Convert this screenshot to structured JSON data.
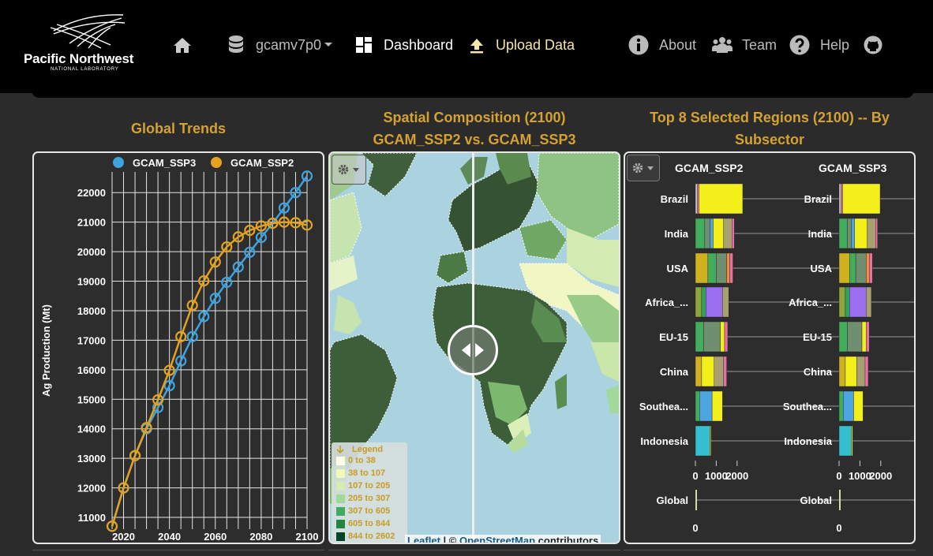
{
  "header": {
    "logo_main": "Pacific Northwest",
    "logo_sub": "NATIONAL LABORATORY",
    "nav": {
      "home_icon": "home-icon",
      "database_label": "gcamv7p0",
      "dashboard_label": "Dashboard",
      "upload_label": "Upload Data",
      "about_label": "About",
      "team_label": "Team",
      "help_label": "Help",
      "github_icon": "github-icon"
    }
  },
  "global_trends": {
    "title": "Global Trends",
    "chart_data": {
      "type": "line",
      "title": "Global Trends",
      "xlabel": "",
      "ylabel": "Ag Production (Mt)",
      "xlim": [
        2015,
        2100
      ],
      "ylim": [
        10600,
        22700
      ],
      "x_ticks": [
        2020,
        2040,
        2060,
        2080,
        2100
      ],
      "y_ticks": [
        11000,
        12000,
        13000,
        14000,
        15000,
        16000,
        17000,
        18000,
        19000,
        20000,
        21000,
        22000
      ],
      "grid": true,
      "legend_position": "top",
      "x": [
        2015,
        2020,
        2025,
        2030,
        2035,
        2040,
        2045,
        2050,
        2055,
        2060,
        2065,
        2070,
        2075,
        2080,
        2085,
        2090,
        2095,
        2100
      ],
      "series": [
        {
          "name": "GCAM_SSP3",
          "color": "#3fa3de",
          "values": [
            10700,
            12000,
            13090,
            14000,
            14720,
            15460,
            16300,
            17120,
            17800,
            18420,
            18960,
            19480,
            19980,
            20480,
            20960,
            21480,
            22000,
            22560
          ]
        },
        {
          "name": "GCAM_SSP2",
          "color": "#e5a21e",
          "values": [
            10700,
            12000,
            13090,
            14040,
            14980,
            15980,
            17120,
            18180,
            19010,
            19650,
            20160,
            20500,
            20720,
            20870,
            20960,
            21000,
            20980,
            20900
          ]
        }
      ]
    }
  },
  "spatial": {
    "title_line1": "Spatial Composition (2100)",
    "title_line2": "GCAM_SSP2 vs. GCAM_SSP3",
    "legend_title": "Legend",
    "legend": [
      {
        "label": "0 to 38",
        "color": "#ffffe5"
      },
      {
        "label": "38 to 107",
        "color": "#f0f9b8"
      },
      {
        "label": "107 to 205",
        "color": "#d3edb2"
      },
      {
        "label": "205 to 307",
        "color": "#a1d99b"
      },
      {
        "label": "307 to 605",
        "color": "#41ab5d"
      },
      {
        "label": "605 to 844",
        "color": "#238443"
      },
      {
        "label": "844 to 2602",
        "color": "#004529"
      }
    ],
    "attribution_leaflet": "Leaflet",
    "attribution_sep": " | © ",
    "attribution_osm": "OpenStreetMap",
    "attribution_tail": " contributors"
  },
  "top_regions": {
    "title_line1": "Top 8 Selected Regions (2100) -- By",
    "title_line2": "Subsector",
    "columns": [
      "GCAM_SSP2",
      "GCAM_SSP3"
    ],
    "chart_data": {
      "type": "bar",
      "title": "Top 8 Selected Regions (2100) -- By Subsector",
      "orientation": "horizontal",
      "stacked": true,
      "categories": [
        "Brazil",
        "India",
        "USA",
        "Africa_...",
        "EU-15",
        "China",
        "Southea...",
        "Indonesia"
      ],
      "x_ticks": [
        0,
        1000,
        2000
      ],
      "x_tick_labels": [
        "0",
        "1000",
        "2000"
      ],
      "xlim": [
        0,
        2500
      ],
      "panels": [
        {
          "name": "GCAM_SSP2",
          "rows": [
            [
              {
                "c": "#c8c8c8",
                "v": 90
              },
              {
                "c": "#e76fa8",
                "v": 80
              },
              {
                "c": "#f2ef1a",
                "v": 2100
              }
            ],
            [
              {
                "c": "#42ad5a",
                "v": 450
              },
              {
                "c": "#6f8f70",
                "v": 250
              },
              {
                "c": "#4ea6e0",
                "v": 150
              },
              {
                "c": "#f2ef1a",
                "v": 500
              },
              {
                "c": "#a8a070",
                "v": 400
              },
              {
                "c": "#e76fa8",
                "v": 120
              }
            ],
            [
              {
                "c": "#cfb11f",
                "v": 600
              },
              {
                "c": "#42ad5a",
                "v": 400
              },
              {
                "c": "#6f8f70",
                "v": 500
              },
              {
                "c": "#f28b3c",
                "v": 150
              },
              {
                "c": "#e76fa8",
                "v": 150
              }
            ],
            [
              {
                "c": "#8fa43a",
                "v": 300
              },
              {
                "c": "#2fa35a",
                "v": 200
              },
              {
                "c": "#9b6ff0",
                "v": 800
              },
              {
                "c": "#a8a070",
                "v": 300
              }
            ],
            [
              {
                "c": "#42ad5a",
                "v": 400
              },
              {
                "c": "#6f8f70",
                "v": 800
              },
              {
                "c": "#f2ef1a",
                "v": 200
              },
              {
                "c": "#e76fa8",
                "v": 150
              }
            ],
            [
              {
                "c": "#cfb11f",
                "v": 300
              },
              {
                "c": "#f2ef1a",
                "v": 600
              },
              {
                "c": "#a8a070",
                "v": 450
              },
              {
                "c": "#e76fa8",
                "v": 150
              }
            ],
            [
              {
                "c": "#42ad5a",
                "v": 200
              },
              {
                "c": "#4ea6e0",
                "v": 600
              },
              {
                "c": "#f2ef1a",
                "v": 500
              }
            ],
            [
              {
                "c": "#36bfd0",
                "v": 700
              },
              {
                "c": "#f2ef1a",
                "v": 50
              }
            ]
          ]
        },
        {
          "name": "GCAM_SSP3",
          "rows": [
            [
              {
                "c": "#c8c8c8",
                "v": 90
              },
              {
                "c": "#e76fa8",
                "v": 80
              },
              {
                "c": "#f2ef1a",
                "v": 1800
              }
            ],
            [
              {
                "c": "#42ad5a",
                "v": 400
              },
              {
                "c": "#6f8f70",
                "v": 200
              },
              {
                "c": "#4ea6e0",
                "v": 150
              },
              {
                "c": "#f2ef1a",
                "v": 600
              },
              {
                "c": "#a8a070",
                "v": 400
              },
              {
                "c": "#e76fa8",
                "v": 100
              }
            ],
            [
              {
                "c": "#cfb11f",
                "v": 500
              },
              {
                "c": "#42ad5a",
                "v": 300
              },
              {
                "c": "#6f8f70",
                "v": 500
              },
              {
                "c": "#f28b3c",
                "v": 150
              },
              {
                "c": "#e76fa8",
                "v": 150
              }
            ],
            [
              {
                "c": "#8fa43a",
                "v": 300
              },
              {
                "c": "#2fa35a",
                "v": 200
              },
              {
                "c": "#9b6ff0",
                "v": 800
              },
              {
                "c": "#a8a070",
                "v": 250
              }
            ],
            [
              {
                "c": "#42ad5a",
                "v": 400
              },
              {
                "c": "#6f8f70",
                "v": 700
              },
              {
                "c": "#f2ef1a",
                "v": 200
              },
              {
                "c": "#e76fa8",
                "v": 150
              }
            ],
            [
              {
                "c": "#cfb11f",
                "v": 300
              },
              {
                "c": "#f2ef1a",
                "v": 550
              },
              {
                "c": "#a8a070",
                "v": 400
              },
              {
                "c": "#e76fa8",
                "v": 150
              }
            ],
            [
              {
                "c": "#42ad5a",
                "v": 200
              },
              {
                "c": "#4ea6e0",
                "v": 500
              },
              {
                "c": "#f2ef1a",
                "v": 450
              }
            ],
            [
              {
                "c": "#36bfd0",
                "v": 600
              },
              {
                "c": "#f2ef1a",
                "v": 50
              }
            ]
          ]
        }
      ],
      "global_label": "Global",
      "global_tick": "0"
    }
  }
}
